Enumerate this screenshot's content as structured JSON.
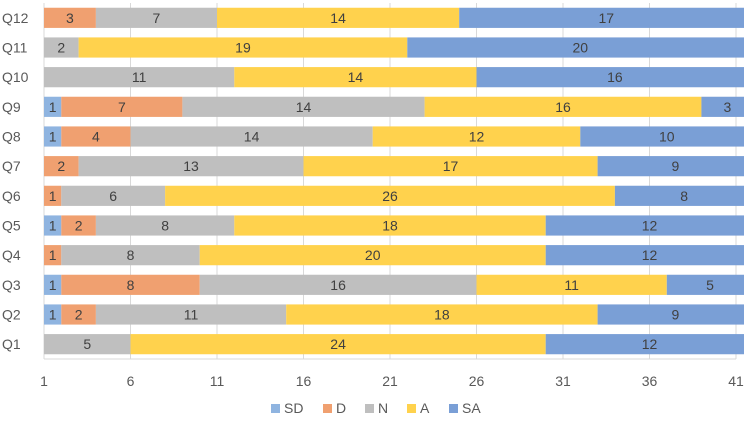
{
  "chart_data": {
    "type": "bar",
    "orientation": "horizontal",
    "stacked": true,
    "title": "",
    "xlabel": "",
    "ylabel": "",
    "xlim": [
      1,
      41
    ],
    "x_ticks": [
      1,
      6,
      11,
      16,
      21,
      26,
      31,
      36,
      41
    ],
    "grid": true,
    "legend_position": "bottom",
    "categories": [
      "Q12",
      "Q11",
      "Q10",
      "Q9",
      "Q8",
      "Q7",
      "Q6",
      "Q5",
      "Q4",
      "Q3",
      "Q2",
      "Q1"
    ],
    "series": [
      {
        "name": "SD",
        "color": "#8FB4E0",
        "values": [
          0,
          0,
          0,
          1,
          1,
          0,
          0,
          1,
          0,
          1,
          1,
          0
        ]
      },
      {
        "name": "D",
        "color": "#F0A070",
        "values": [
          3,
          0,
          0,
          7,
          4,
          2,
          1,
          2,
          1,
          8,
          2,
          0
        ]
      },
      {
        "name": "N",
        "color": "#BFBFBF",
        "values": [
          7,
          2,
          11,
          14,
          14,
          13,
          6,
          8,
          8,
          16,
          11,
          5
        ]
      },
      {
        "name": "A",
        "color": "#FFD24D",
        "values": [
          14,
          19,
          14,
          16,
          12,
          17,
          26,
          18,
          20,
          11,
          18,
          24
        ]
      },
      {
        "name": "SA",
        "color": "#7A9FD6",
        "values": [
          17,
          20,
          16,
          3,
          10,
          9,
          8,
          12,
          12,
          5,
          9,
          12
        ]
      }
    ]
  }
}
